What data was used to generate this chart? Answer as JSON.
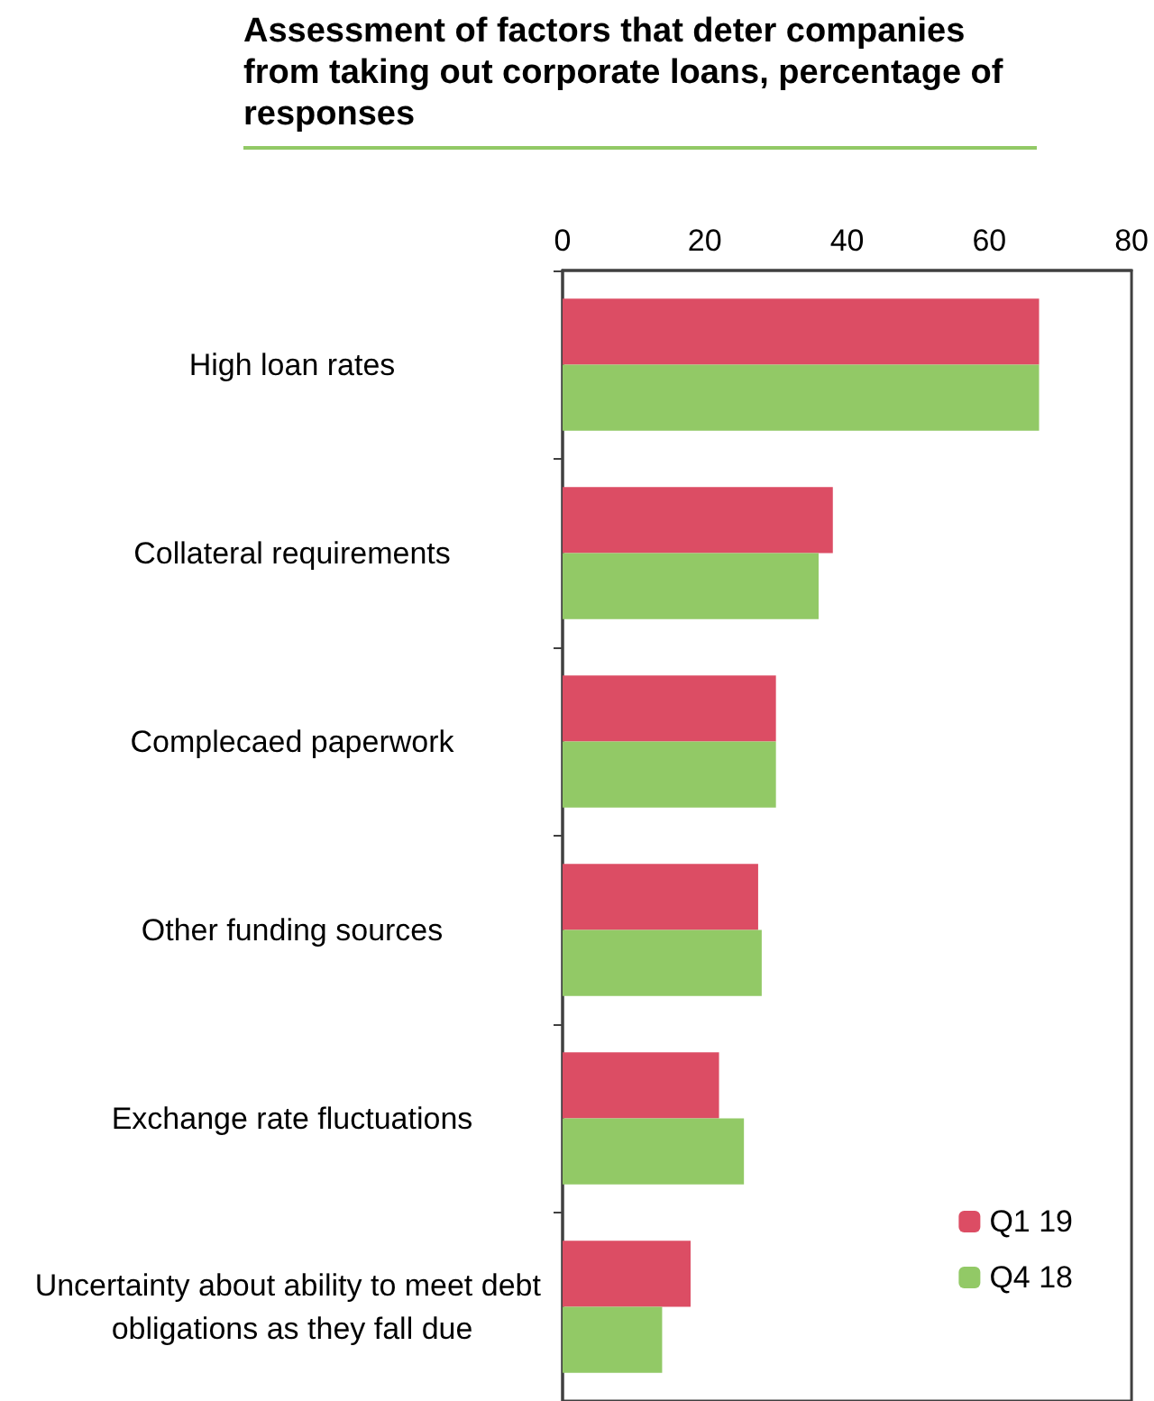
{
  "chart_data": {
    "type": "bar",
    "orientation": "horizontal",
    "title": "Assessment of factors that deter companies from taking out corporate loans, percentage of responses",
    "categories": [
      "High loan rates",
      "Collateral requirements",
      "Complecaed paperwork",
      "Other funding sources",
      "Exchange rate fluctuations",
      "Uncertainty about ability to meet debt obligations as they fall due"
    ],
    "series": [
      {
        "name": "Q1 19",
        "color": "#dc4d64",
        "values": [
          67,
          38,
          30,
          27.5,
          22,
          18
        ]
      },
      {
        "name": "Q4 18",
        "color": "#92c966",
        "values": [
          67,
          36,
          30,
          28,
          25.5,
          14
        ]
      }
    ],
    "xlim": [
      0,
      80
    ],
    "xticks": [
      0,
      20,
      40,
      60,
      80
    ],
    "grid": false,
    "legend": "bottom right"
  }
}
